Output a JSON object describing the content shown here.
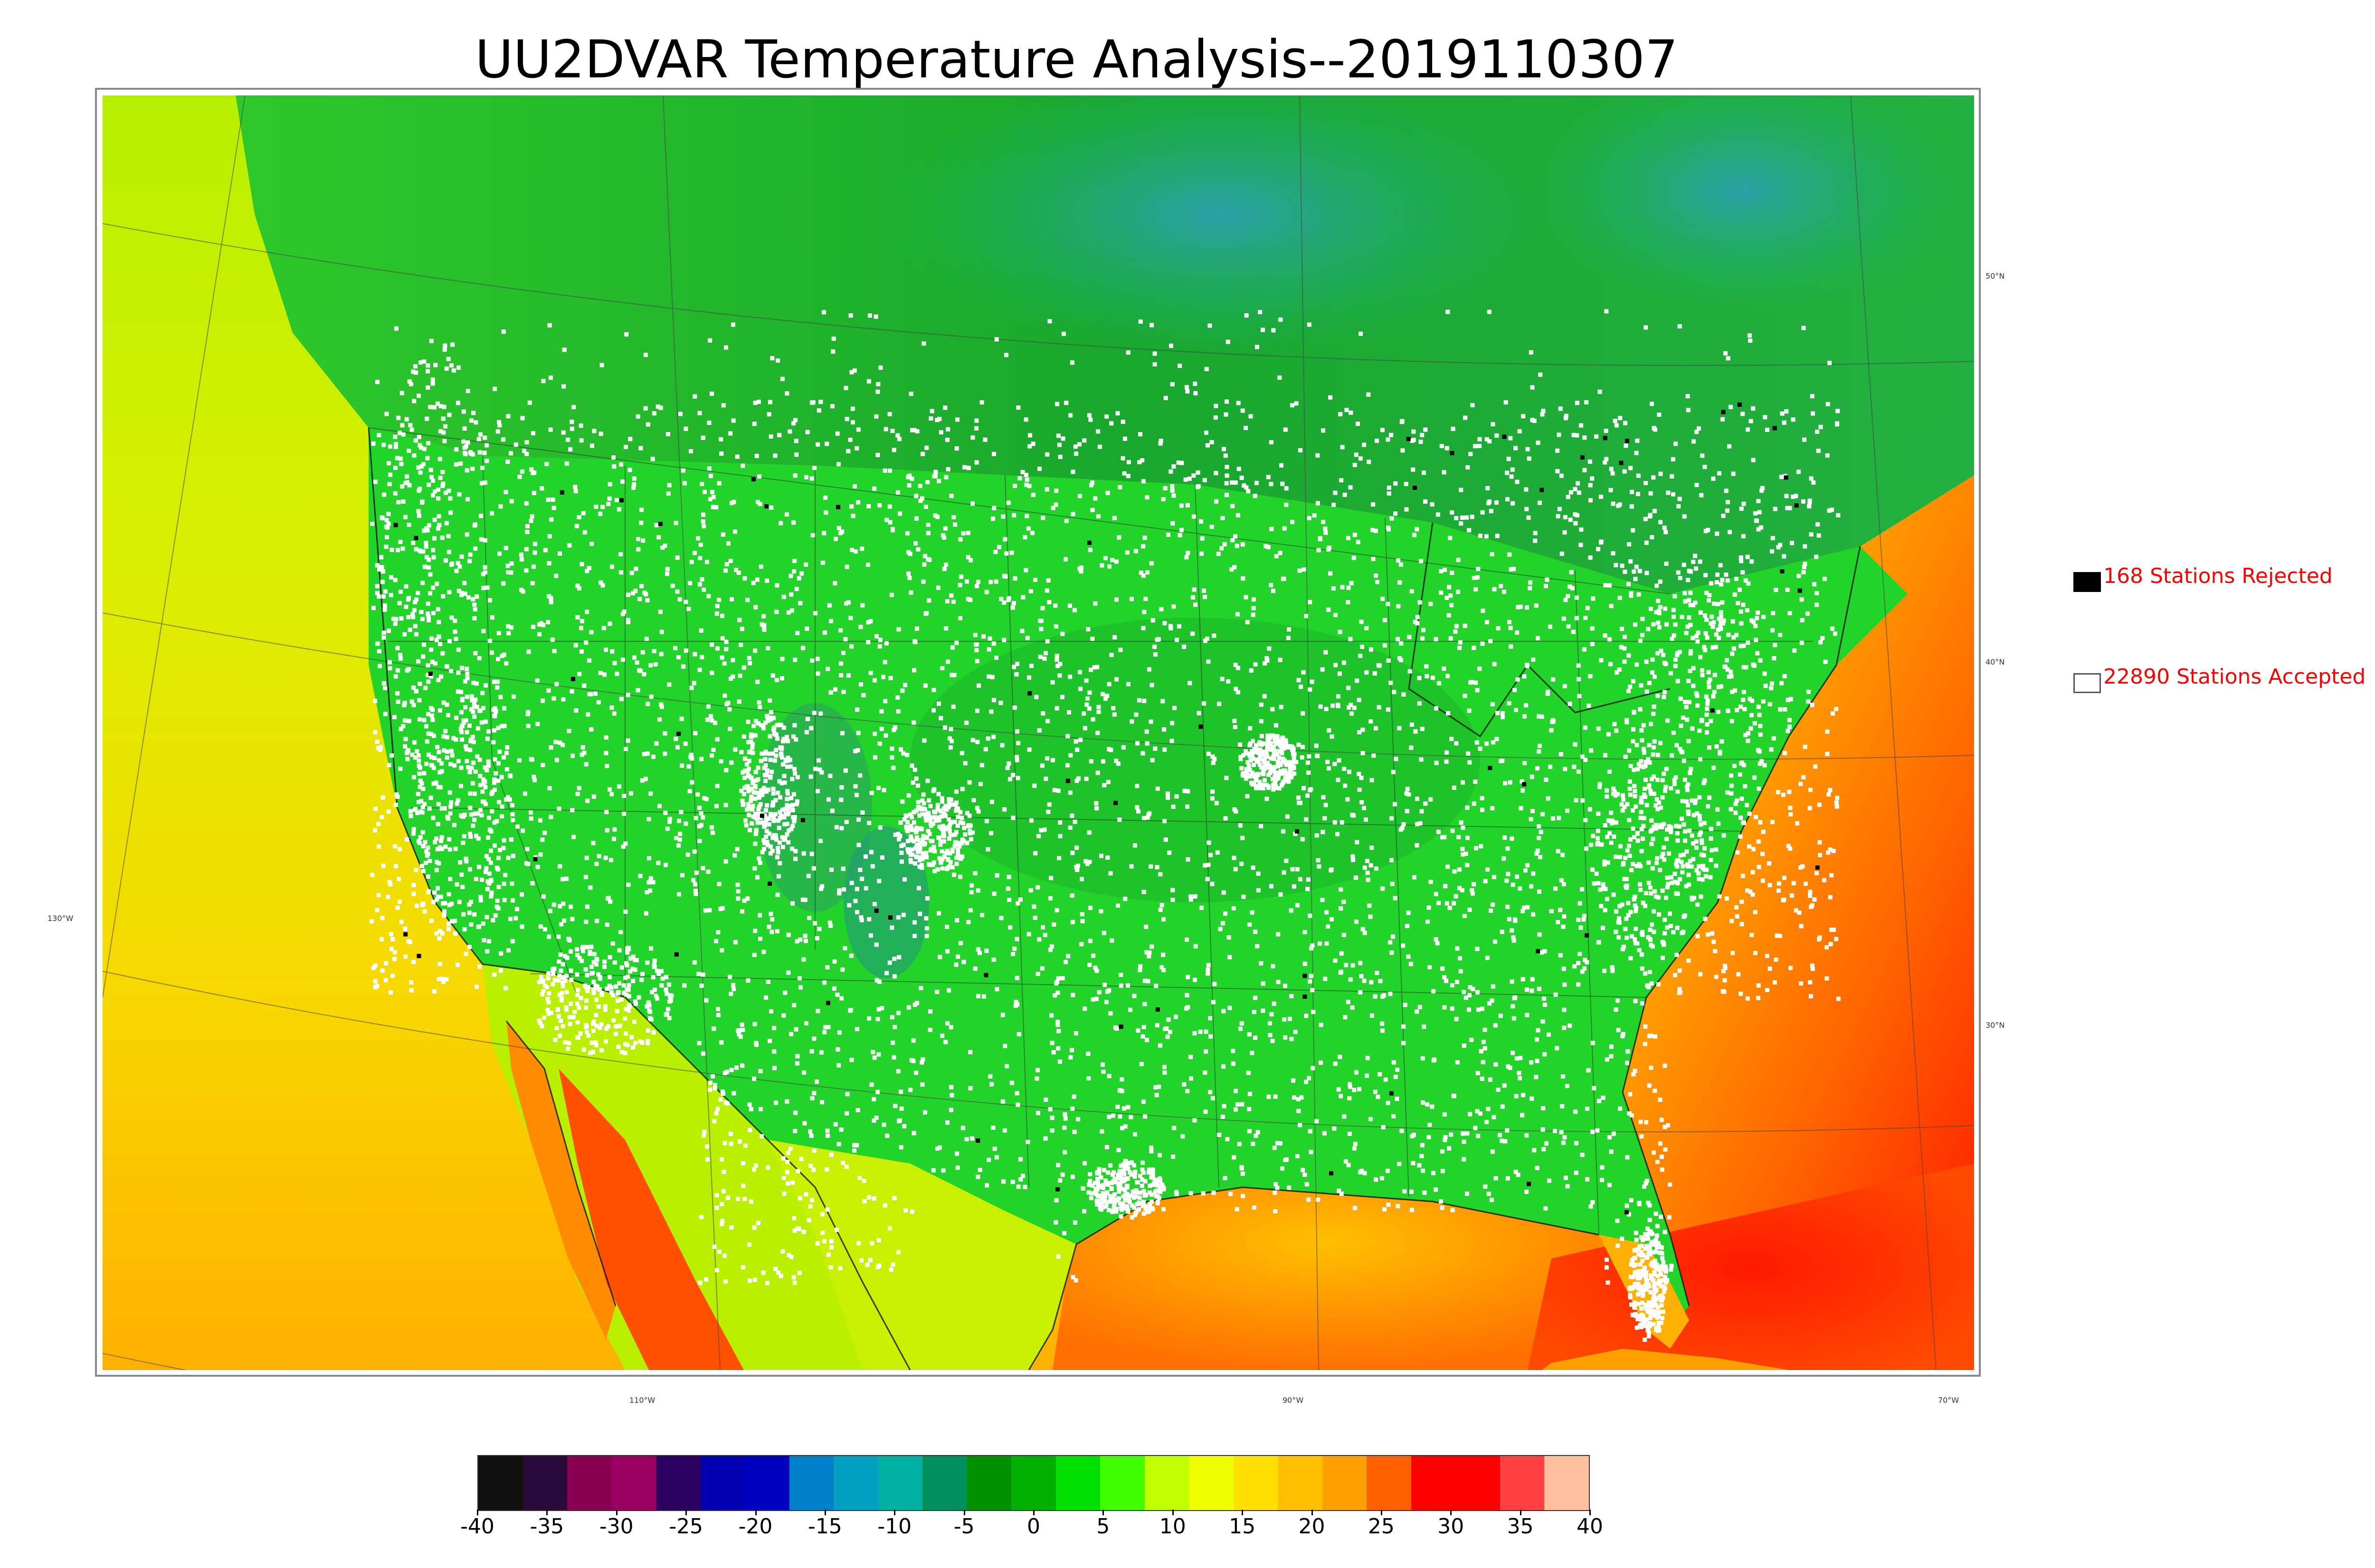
{
  "title": "UU2DVAR Temperature Analysis--2019110307",
  "legend": {
    "rejected": {
      "text": "168 Stations Rejected",
      "swatch_color": "#000000"
    },
    "accepted": {
      "text": "22890 Stations Accepted",
      "swatch_color": "#ffffff"
    }
  },
  "map": {
    "latitude_labels": [
      "50°N",
      "40°N",
      "30°N"
    ],
    "longitude_labels": [
      "130°W",
      "110°W",
      "90°W",
      "70°W"
    ],
    "ocean_colors": {
      "pacific_north": "#c8f000",
      "pacific_south": "#f5c000",
      "atlantic_south": "#ff3000",
      "gulf": "#ffb000"
    },
    "land_color": "#22cc22",
    "canada_color": "#1fb82a",
    "cold_region_color": "#22aa88"
  },
  "colorbar": {
    "ticks": [
      "-40",
      "-35",
      "-30",
      "-25",
      "-20",
      "-15",
      "-10",
      "-5",
      "0",
      "5",
      "10",
      "15",
      "20",
      "25",
      "30",
      "35",
      "40"
    ],
    "colors": [
      "#111111",
      "#2a0a3a",
      "#8a0050",
      "#9a0060",
      "#2a0060",
      "#0000b0",
      "#0000c0",
      "#0080c8",
      "#00a0c0",
      "#00b0a0",
      "#009060",
      "#009000",
      "#00b000",
      "#00e000",
      "#40ff00",
      "#c0ff00",
      "#f0ff00",
      "#ffe000",
      "#ffc000",
      "#ffa000",
      "#ff6000",
      "#ff0000",
      "#ff0000",
      "#ff4040",
      "#ffc0a0"
    ]
  }
}
